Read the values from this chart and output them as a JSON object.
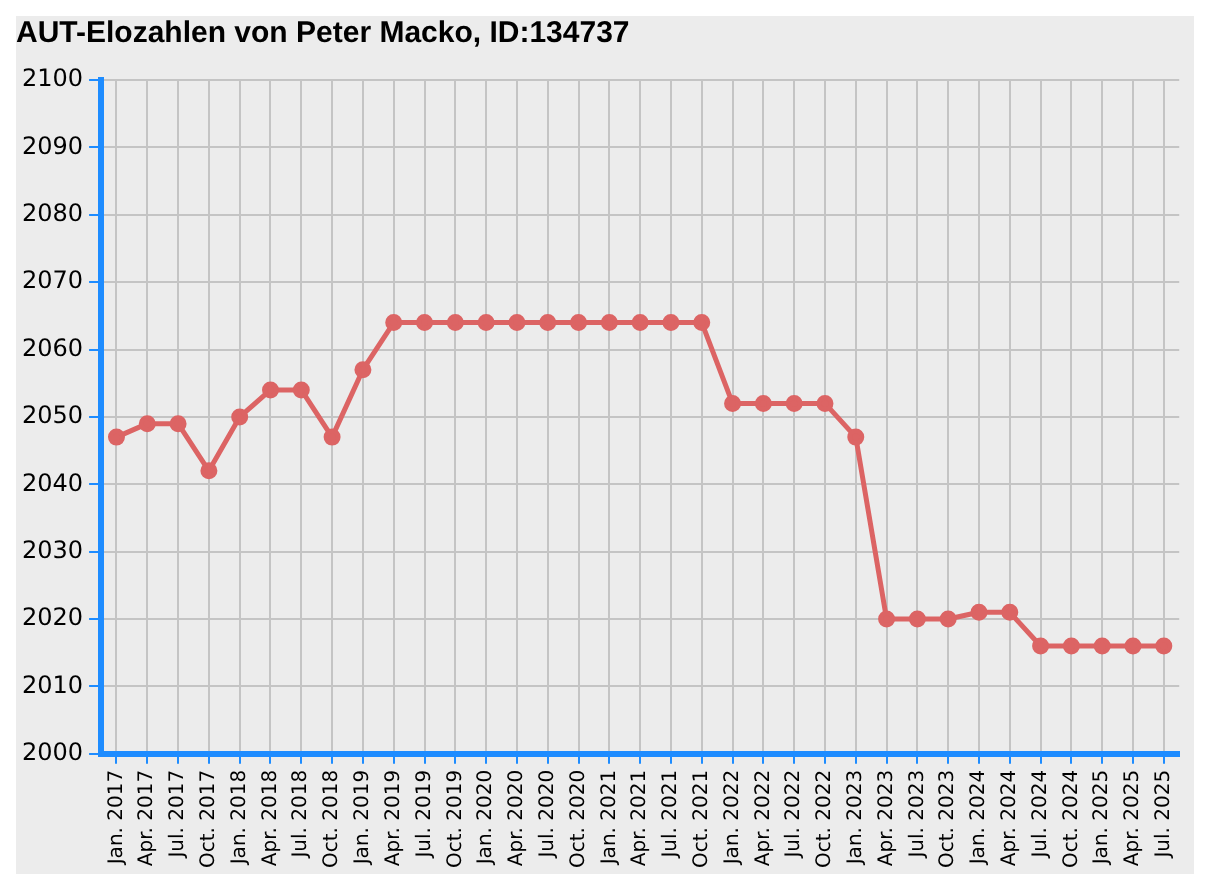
{
  "chart_data": {
    "type": "line",
    "title": "AUT-Elozahlen von Peter Macko, ID:134737",
    "categories": [
      "Jan. 2017",
      "Apr. 2017",
      "Jul. 2017",
      "Oct. 2017",
      "Jan. 2018",
      "Apr. 2018",
      "Jul. 2018",
      "Oct. 2018",
      "Jan. 2019",
      "Apr. 2019",
      "Jul. 2019",
      "Oct. 2019",
      "Jan. 2020",
      "Apr. 2020",
      "Jul. 2020",
      "Oct. 2020",
      "Jan. 2021",
      "Apr. 2021",
      "Jul. 2021",
      "Oct. 2021",
      "Jan. 2022",
      "Apr. 2022",
      "Jul. 2022",
      "Oct. 2022",
      "Jan. 2023",
      "Apr. 2023",
      "Jul. 2023",
      "Oct. 2023",
      "Jan. 2024",
      "Apr. 2024",
      "Jul. 2024",
      "Oct. 2024",
      "Jan. 2025",
      "Apr. 2025",
      "Jul. 2025"
    ],
    "series": [
      {
        "color": "#dc6464",
        "values": [
          2047,
          2049,
          2049,
          2042,
          2050,
          2054,
          2054,
          2047,
          2057,
          2064,
          2064,
          2064,
          2064,
          2064,
          2064,
          2064,
          2064,
          2064,
          2064,
          2064,
          2052,
          2052,
          2052,
          2052,
          2047,
          2020,
          2020,
          2020,
          2021,
          2021,
          2016,
          2016,
          2016,
          2016,
          2016
        ]
      }
    ],
    "ylim": [
      2000,
      2100
    ],
    "yticks": [
      2000,
      2010,
      2020,
      2030,
      2040,
      2050,
      2060,
      2070,
      2080,
      2090,
      2100
    ],
    "grid": true,
    "legend": false,
    "marker": "circle",
    "line_style": "solid"
  }
}
